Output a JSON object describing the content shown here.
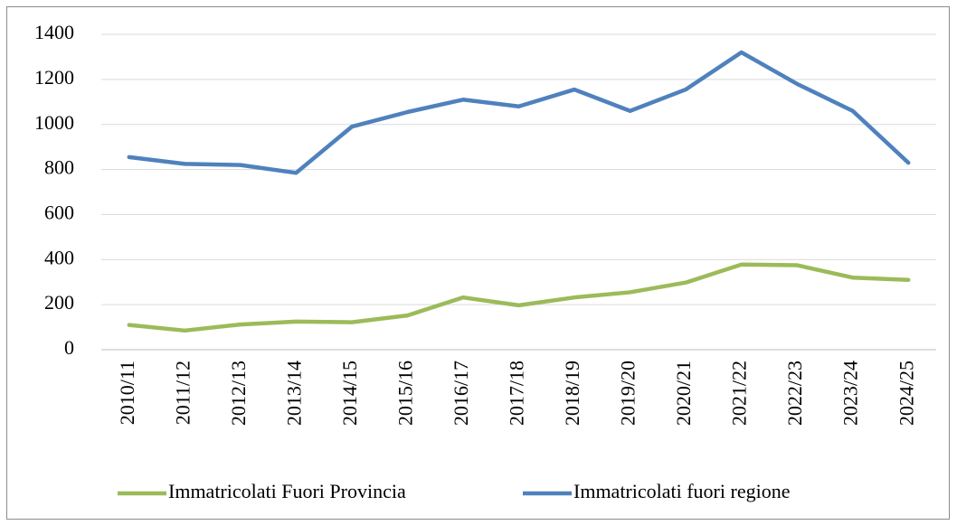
{
  "chart_data": {
    "type": "line",
    "categories": [
      "2010/11",
      "2011/12",
      "2012/13",
      "2013/14",
      "2014/15",
      "2015/16",
      "2016/17",
      "2017/18",
      "2018/19",
      "2019/20",
      "2020/21",
      "2021/22",
      "2022/23",
      "2023/24",
      "2024/25"
    ],
    "series": [
      {
        "name": "Immatricolati Fuori Provincia",
        "color": "#9bbb59",
        "values": [
          110,
          85,
          112,
          125,
          122,
          152,
          232,
          197,
          232,
          255,
          298,
          378,
          375,
          320,
          310
        ]
      },
      {
        "name": "Immatricolati fuori regione",
        "color": "#4f81bd",
        "values": [
          855,
          825,
          820,
          785,
          990,
          1055,
          1110,
          1080,
          1155,
          1060,
          1155,
          1320,
          1180,
          1060,
          830
        ]
      }
    ],
    "ylim": [
      0,
      1400
    ],
    "yticks": [
      0,
      200,
      400,
      600,
      800,
      1000,
      1200,
      1400
    ],
    "grid": true,
    "legend": "bottom"
  }
}
